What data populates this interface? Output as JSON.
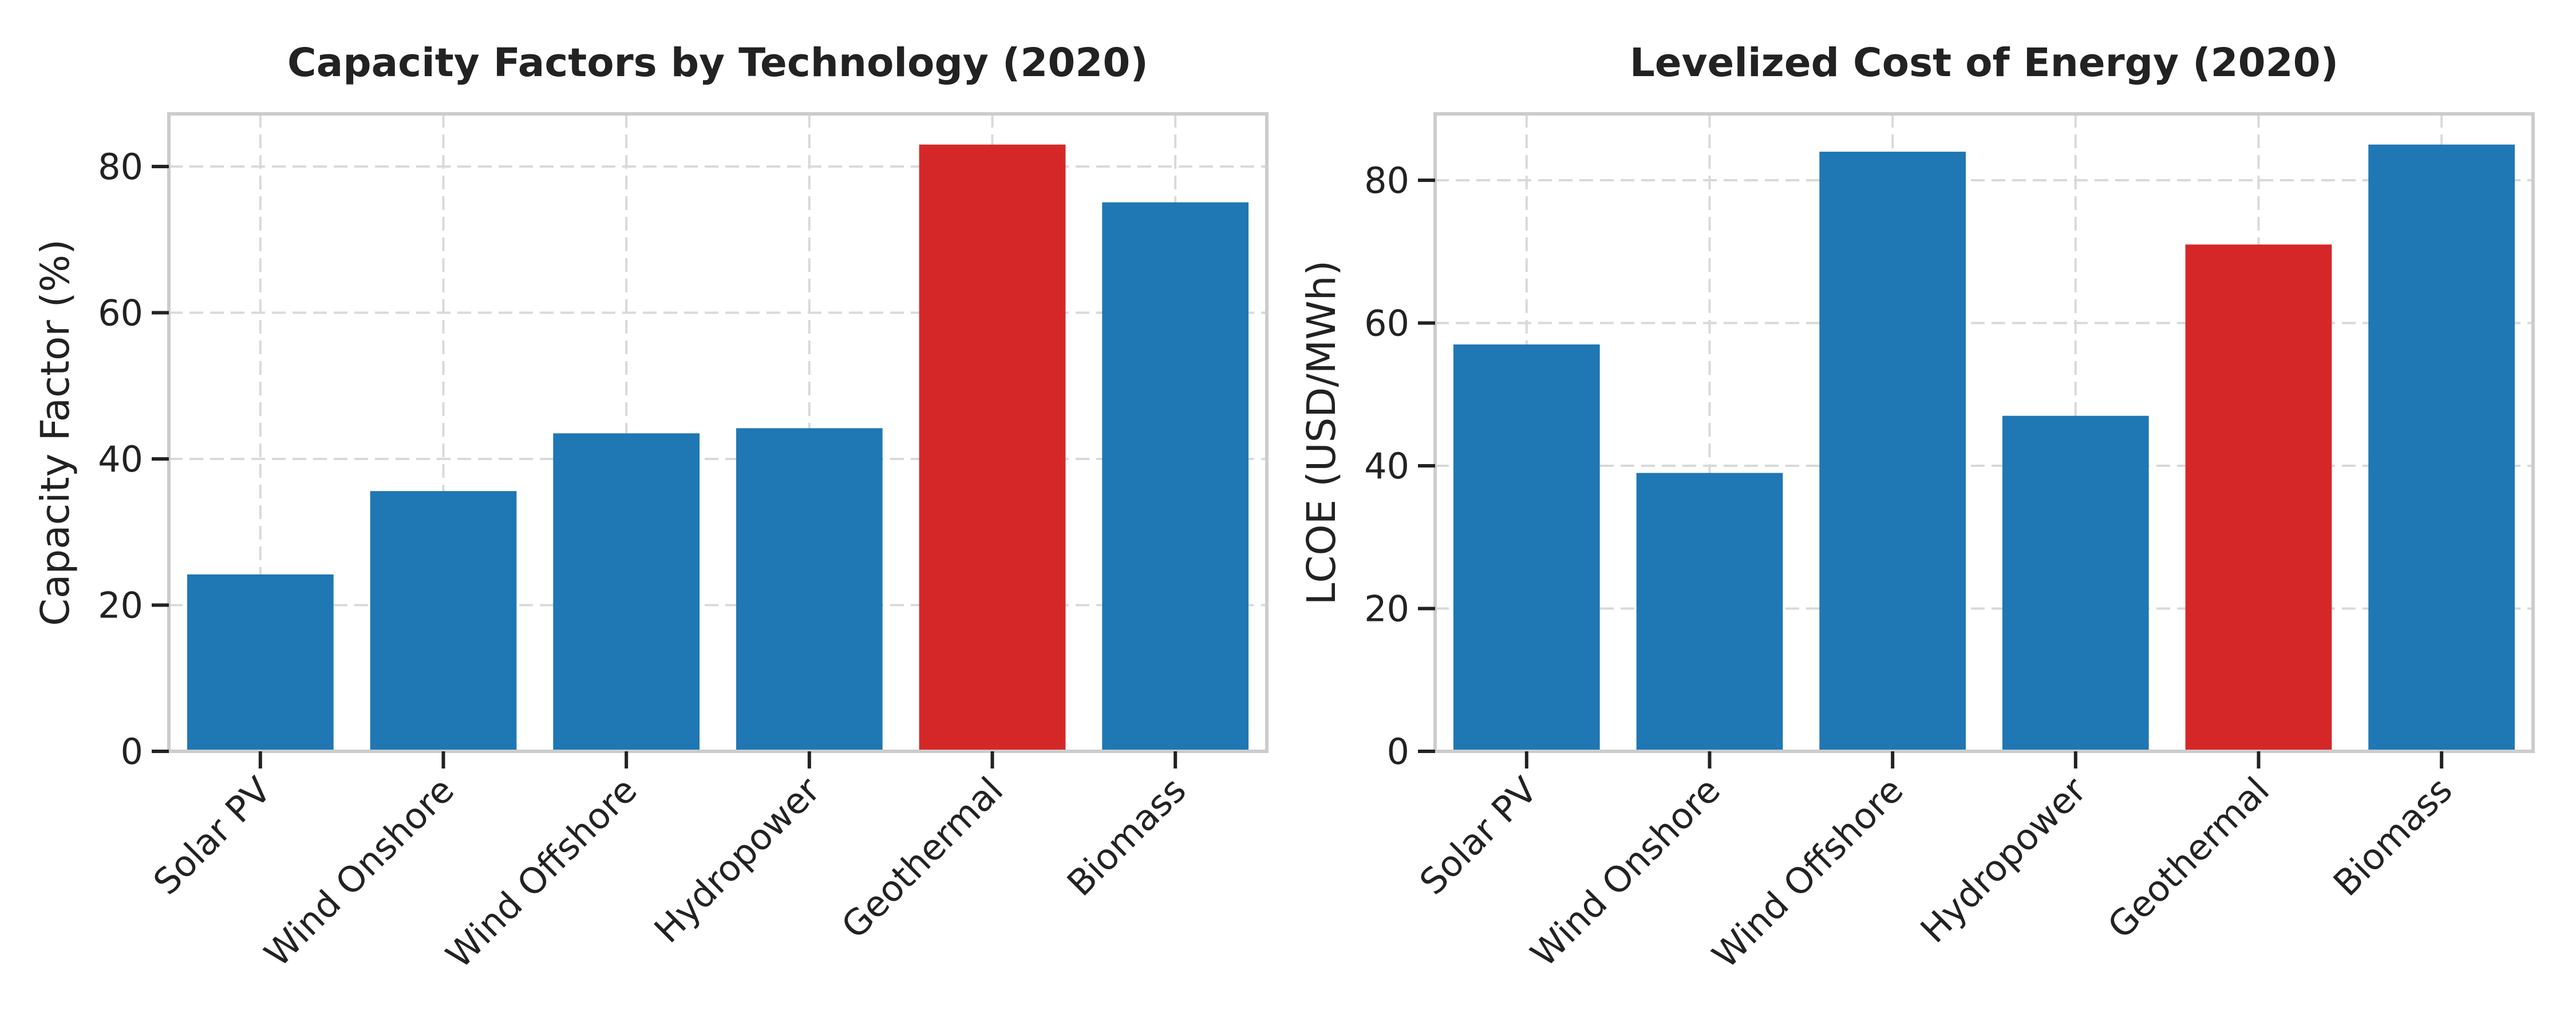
{
  "chart_data": [
    {
      "type": "bar",
      "title": "Capacity Factors by Technology (2020)",
      "xlabel": "",
      "ylabel": "Capacity Factor (%)",
      "categories": [
        "Solar PV",
        "Wind Onshore",
        "Wind Offshore",
        "Hydropower",
        "Geothermal",
        "Biomass"
      ],
      "values": [
        24.2,
        35.6,
        43.5,
        44.2,
        83.0,
        75.1
      ],
      "bar_colors": [
        "#1f77b4",
        "#1f77b4",
        "#1f77b4",
        "#1f77b4",
        "#d62728",
        "#1f77b4"
      ],
      "ylim": [
        0,
        87.2
      ],
      "yticks": [
        0,
        20,
        40,
        60,
        80
      ],
      "grid": true
    },
    {
      "type": "bar",
      "title": "Levelized Cost of Energy (2020)",
      "xlabel": "",
      "ylabel": "LCOE (USD/MWh)",
      "categories": [
        "Solar PV",
        "Wind Onshore",
        "Wind Offshore",
        "Hydropower",
        "Geothermal",
        "Biomass"
      ],
      "values": [
        57,
        39,
        84,
        47,
        71,
        85
      ],
      "bar_colors": [
        "#1f77b4",
        "#1f77b4",
        "#1f77b4",
        "#1f77b4",
        "#d62728",
        "#1f77b4"
      ],
      "ylim": [
        0,
        89.3
      ],
      "yticks": [
        0,
        20,
        40,
        60,
        80
      ],
      "grid": true
    }
  ]
}
